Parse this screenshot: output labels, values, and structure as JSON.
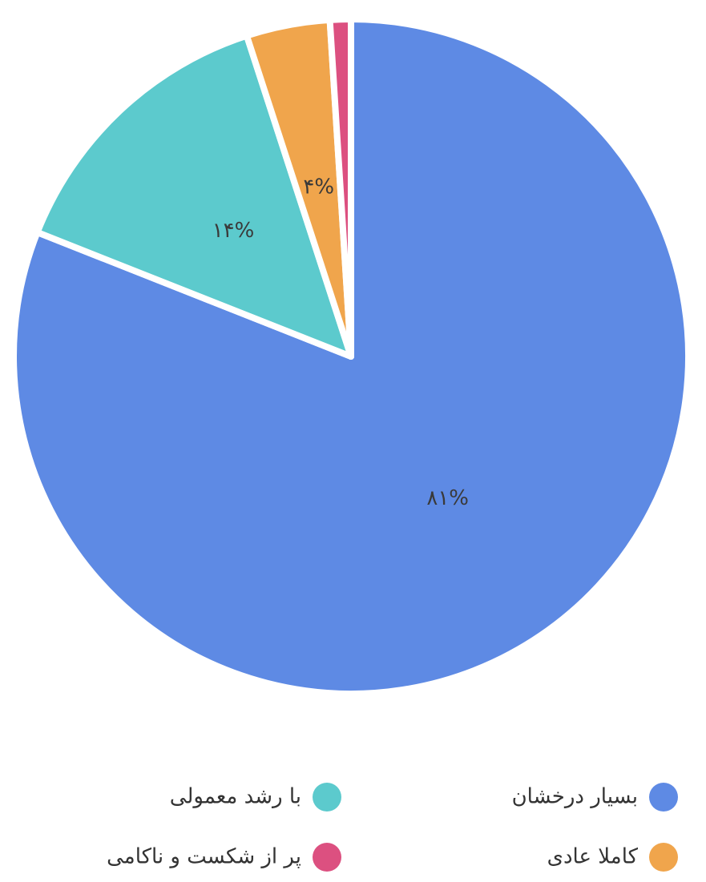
{
  "chart_data": {
    "type": "pie",
    "categories": [
      "بسیار درخشان",
      "با رشد معمولی",
      "کاملا عادی",
      "پر از شکست و ناکامی"
    ],
    "values": [
      81,
      14,
      4,
      1
    ],
    "value_labels": [
      "۸۱%",
      "۱۴%",
      "۴%",
      null
    ],
    "colors": [
      "#5e8ae4",
      "#5ccacd",
      "#f0a54c",
      "#dc5080"
    ]
  }
}
